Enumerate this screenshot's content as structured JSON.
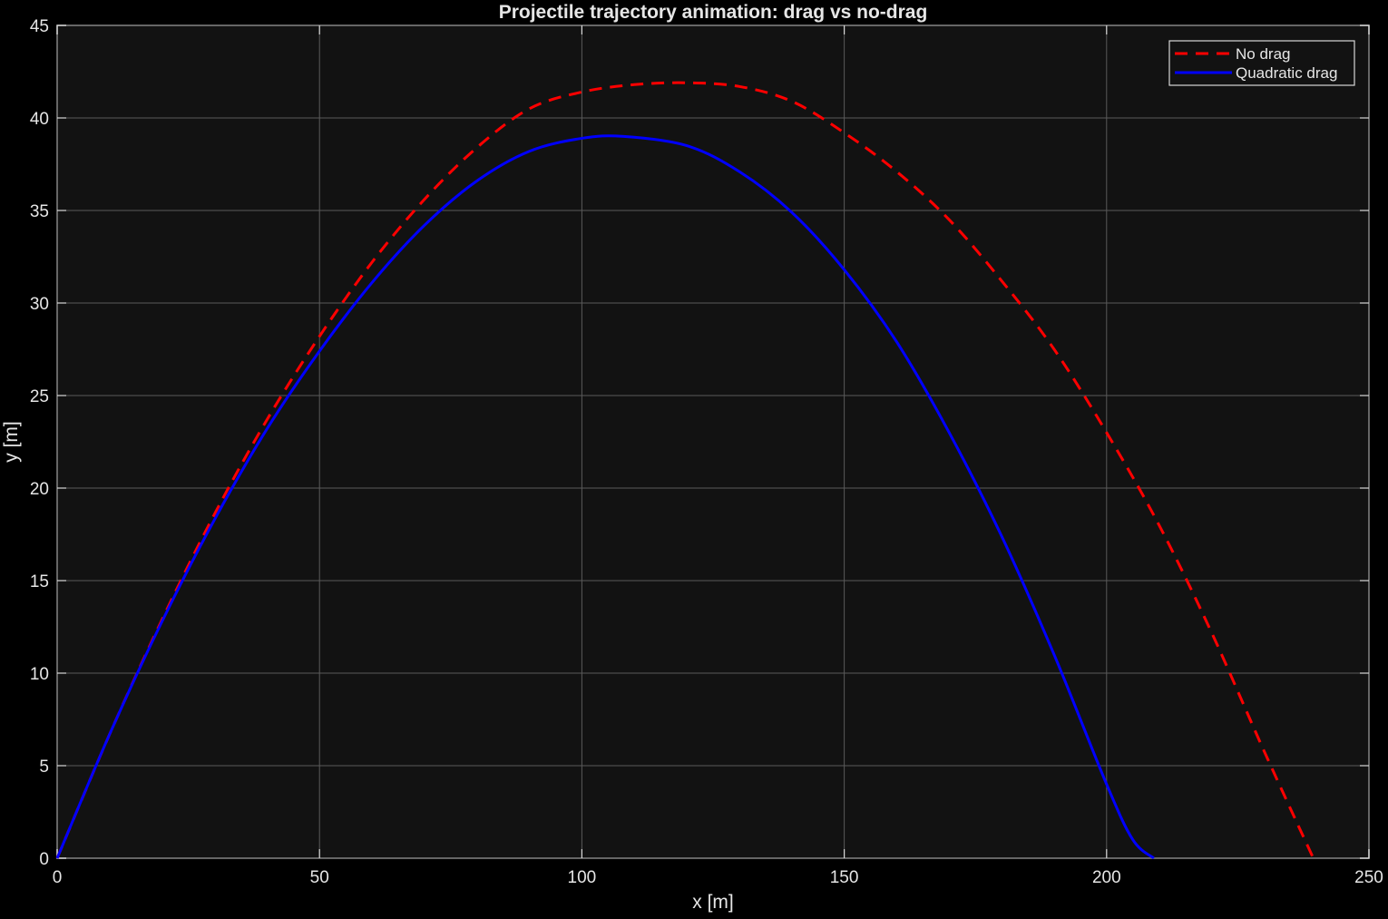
{
  "chart_data": {
    "type": "line",
    "title": "Projectile trajectory animation: drag vs no-drag",
    "xlabel": "x [m]",
    "ylabel": "y [m]",
    "xlim": [
      0,
      250
    ],
    "ylim": [
      0,
      45
    ],
    "xticks": [
      0,
      50,
      100,
      150,
      200,
      250
    ],
    "yticks": [
      0,
      5,
      10,
      15,
      20,
      25,
      30,
      35,
      40,
      45
    ],
    "grid": true,
    "legend_position": "top-right",
    "series": [
      {
        "name": "No drag",
        "color": "#ff0000",
        "line_style": "dashed",
        "x": [
          0,
          10,
          20,
          30,
          40,
          50,
          60,
          70,
          80,
          90,
          100,
          110,
          120,
          130,
          140,
          150,
          160,
          170,
          180,
          190,
          200,
          210,
          220,
          230,
          239.4
        ],
        "y": [
          0,
          6.7,
          12.9,
          18.6,
          23.7,
          28.2,
          32.2,
          35.6,
          38.4,
          40.5,
          41.4,
          41.8,
          41.9,
          41.7,
          40.9,
          39.2,
          37.1,
          34.5,
          31.2,
          27.5,
          23.0,
          18.0,
          12.2,
          5.8,
          0
        ]
      },
      {
        "name": "Quadratic drag",
        "color": "#0000ff",
        "line_style": "solid",
        "x": [
          0,
          10,
          20,
          30,
          40,
          50,
          60,
          70,
          80,
          90,
          100,
          108,
          120,
          130,
          140,
          150,
          160,
          170,
          180,
          190,
          200,
          205,
          209
        ],
        "y": [
          0,
          6.7,
          12.8,
          18.3,
          23.2,
          27.4,
          31.1,
          34.2,
          36.6,
          38.2,
          38.9,
          39.0,
          38.5,
          37.1,
          34.9,
          31.8,
          27.9,
          23.0,
          17.4,
          11.0,
          4.0,
          1.0,
          0
        ]
      }
    ]
  }
}
